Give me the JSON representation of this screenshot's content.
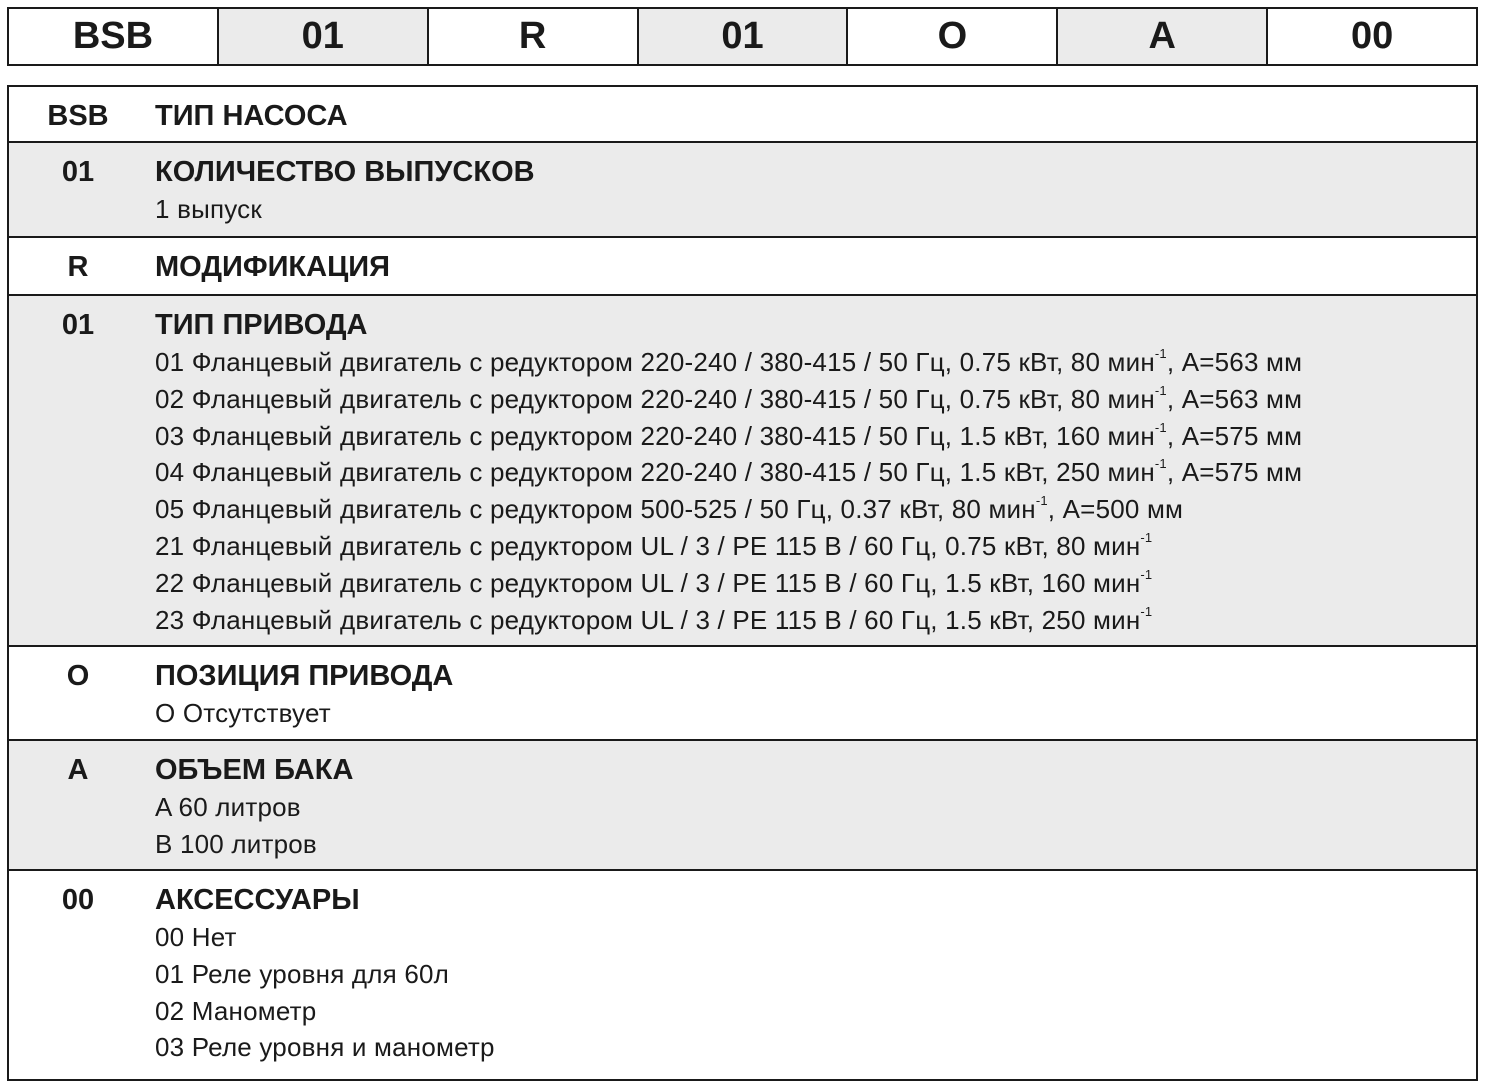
{
  "code_bar": [
    "BSB",
    "01",
    "R",
    "01",
    "O",
    "A",
    "00"
  ],
  "rows": [
    {
      "code": "BSB",
      "title": "ТИП НАСОСА",
      "items": []
    },
    {
      "code": "01",
      "title": "КОЛИЧЕСТВО ВЫПУСКОВ",
      "items": [
        {
          "text": "1 выпуск"
        }
      ]
    },
    {
      "code": "R",
      "title": "МОДИФИКАЦИЯ",
      "items": []
    },
    {
      "code": "01",
      "title": "ТИП ПРИВОДА",
      "items": [
        {
          "text": "01 Фланцевый двигатель с редуктором 220-240 / 380-415 / 50 Гц, 0.75 кВт, 80 мин",
          "sup": "-1",
          "after": ", A=563 мм"
        },
        {
          "text": "02 Фланцевый двигатель с редуктором 220-240 / 380-415 / 50 Гц, 0.75 кВт, 80 мин",
          "sup": "-1",
          "after": ", A=563 мм"
        },
        {
          "text": "03 Фланцевый двигатель с редуктором 220-240 / 380-415 / 50 Гц, 1.5 кВт, 160 мин",
          "sup": "-1",
          "after": ", A=575 мм"
        },
        {
          "text": "04 Фланцевый двигатель с редуктором 220-240 / 380-415 / 50 Гц, 1.5 кВт, 250 мин",
          "sup": "-1",
          "after": ", A=575 мм"
        },
        {
          "text": "05 Фланцевый двигатель с редуктором 500-525 / 50 Гц, 0.37 кВт, 80 мин",
          "sup": "-1",
          "after": ", A=500 мм"
        },
        {
          "text": "21 Фланцевый двигатель с редуктором UL / 3 / PE 115 В / 60 Гц, 0.75 кВт, 80 мин",
          "sup": "-1"
        },
        {
          "text": "22 Фланцевый двигатель с редуктором UL / 3 / PE 115 В / 60 Гц, 1.5 кВт, 160 мин",
          "sup": "-1"
        },
        {
          "text": "23 Фланцевый двигатель с редуктором UL / 3 / PE 115 В / 60 Гц, 1.5 кВт, 250 мин",
          "sup": "-1"
        }
      ]
    },
    {
      "code": "O",
      "title": "ПОЗИЦИЯ ПРИВОДА",
      "items": [
        {
          "text": "O Отсутствует"
        }
      ]
    },
    {
      "code": "A",
      "title": "ОБЪЕМ БАКА",
      "items": [
        {
          "text": "A 60 литров"
        },
        {
          "text": "B 100 литров"
        }
      ]
    },
    {
      "code": "00",
      "title": "АКСЕССУАРЫ",
      "items": [
        {
          "text": "00 Нет"
        },
        {
          "text": "01 Реле уровня для 60л"
        },
        {
          "text": "02 Манометр"
        },
        {
          "text": "03 Реле уровня и манометр"
        }
      ]
    }
  ],
  "colors": {
    "alt_row": "#ebebeb",
    "border": "#1a1a1a"
  }
}
